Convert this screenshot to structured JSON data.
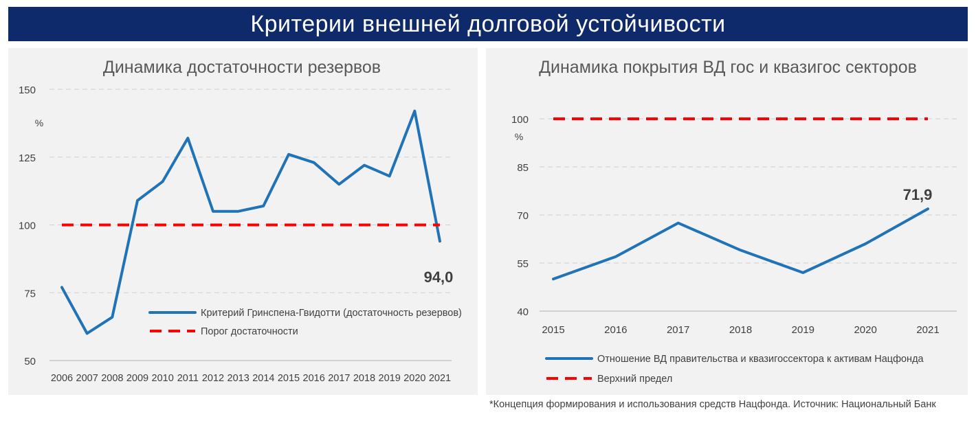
{
  "banner": {
    "title": "Критерии внешней долговой устойчивости"
  },
  "footnote": "*Концепция формирования и использования средств Нацфонда. Источник: Национальный Банк",
  "colors": {
    "banner_bg": "#0f2a6a",
    "series_line": "#1f73b6",
    "threshold_line": "#ff0000",
    "panel_bg": "#f2f2f2"
  },
  "chart_data": [
    {
      "type": "line",
      "title": "Динамика достаточности резервов",
      "ylabel": "%",
      "x": [
        "2006",
        "2007",
        "2008",
        "2009",
        "2010",
        "2011",
        "2012",
        "2013",
        "2014",
        "2015",
        "2016",
        "2017",
        "2018",
        "2019",
        "2020",
        "2021"
      ],
      "yticks": [
        "50",
        "75",
        "100",
        "125",
        "150"
      ],
      "ylim": [
        50,
        150
      ],
      "grid": true,
      "legend_position": "bottom-right",
      "series": [
        {
          "name": "Критерий Гринспена-Гвидотти (достаточность резервов)",
          "style": "solid",
          "values": [
            77,
            60,
            66,
            109,
            116,
            132,
            105,
            105,
            107,
            126,
            123,
            115,
            122,
            118,
            142,
            94
          ]
        },
        {
          "name": "Порог достаточности",
          "style": "dashed",
          "values": [
            100,
            100,
            100,
            100,
            100,
            100,
            100,
            100,
            100,
            100,
            100,
            100,
            100,
            100,
            100,
            100
          ]
        }
      ],
      "annotations": [
        {
          "text": "94,0",
          "x": "2021",
          "y": 94
        }
      ]
    },
    {
      "type": "line",
      "title": "Динамика покрытия ВД гос и квазигос секторов",
      "ylabel": "%",
      "x": [
        "2015",
        "2016",
        "2017",
        "2018",
        "2019",
        "2020",
        "2021"
      ],
      "yticks": [
        "40",
        "55",
        "70",
        "85",
        "100"
      ],
      "ylim": [
        40,
        100
      ],
      "grid": true,
      "legend_position": "bottom",
      "series": [
        {
          "name": "Отношение ВД правительства и квазигоссектора к активам Нацфонда",
          "style": "solid",
          "values": [
            50,
            57,
            67.5,
            59,
            52,
            61,
            71.9
          ]
        },
        {
          "name": "Верхний предел",
          "style": "dashed",
          "values": [
            100,
            100,
            100,
            100,
            100,
            100,
            100
          ]
        }
      ],
      "annotations": [
        {
          "text": "71,9",
          "x": "2021",
          "y": 71.9
        }
      ]
    }
  ]
}
